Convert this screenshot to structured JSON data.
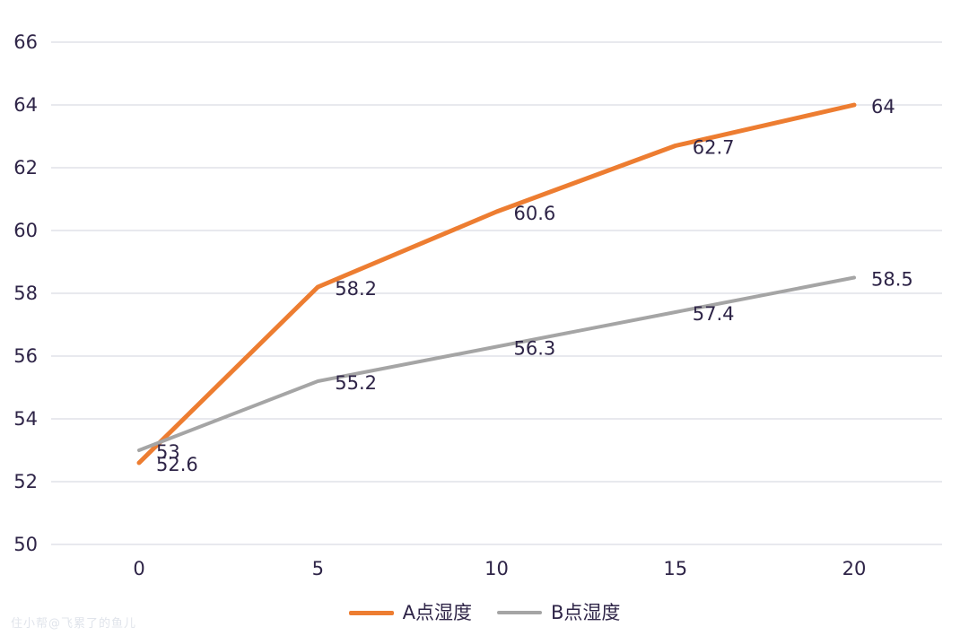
{
  "colors": {
    "background": "#ffffff",
    "text": "#2e2447",
    "gridline": "#d9dce3",
    "series_a": "#ED7D31",
    "series_b": "#A5A5A5"
  },
  "watermark": {
    "text": "住小帮@飞累了的鱼儿"
  },
  "chart_data": {
    "type": "line",
    "title": "",
    "xlabel": "",
    "ylabel": "",
    "x": [
      0,
      5,
      10,
      15,
      20
    ],
    "xticks": [
      0,
      5,
      10,
      15,
      20
    ],
    "yticks": [
      50,
      52,
      54,
      56,
      58,
      60,
      62,
      64,
      66
    ],
    "xlim": [
      0,
      20
    ],
    "ylim": [
      50,
      66
    ],
    "grid": "horizontal",
    "legend_position": "bottom-center",
    "series": [
      {
        "name": "A点湿度",
        "color": "#ED7D31",
        "stroke_width": 5,
        "values": [
          52.6,
          58.2,
          60.6,
          62.7,
          64
        ],
        "labels": [
          "52.6",
          "58.2",
          "60.6",
          "62.7",
          "64"
        ]
      },
      {
        "name": "B点湿度",
        "color": "#A5A5A5",
        "stroke_width": 4,
        "values": [
          53,
          55.2,
          56.3,
          57.4,
          58.5
        ],
        "labels": [
          "53",
          "55.2",
          "56.3",
          "57.4",
          "58.5"
        ]
      }
    ]
  }
}
